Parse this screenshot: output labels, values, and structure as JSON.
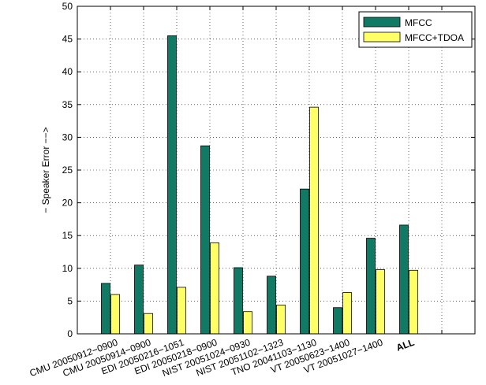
{
  "chart_data": {
    "type": "bar",
    "ylabel": "− Speaker Error −−>",
    "ylim": [
      0,
      50
    ],
    "yticks": [
      0,
      5,
      10,
      15,
      20,
      25,
      30,
      35,
      40,
      45,
      50
    ],
    "grid": true,
    "legend_position": "top-right",
    "categories": [
      "CMU 20050912−0900",
      "CMU 20050914−0900",
      "EDI 20050216−1051",
      "EDI 20050218−0900",
      "NIST 20051024−0930",
      "NIST 20051102−1323",
      "TNO 20041103−1130",
      "VT 20050623−1400",
      "VT 20051027−1400",
      "ALL"
    ],
    "series": [
      {
        "name": "MFCC",
        "color": "#117a65",
        "values": [
          7.7,
          10.5,
          45.5,
          28.7,
          10.1,
          8.8,
          22.1,
          4.0,
          14.6,
          16.6
        ]
      },
      {
        "name": "MFCC+TDOA",
        "color": "#ffff66",
        "values": [
          6.0,
          3.1,
          7.1,
          13.9,
          3.4,
          4.4,
          34.6,
          6.3,
          9.8,
          9.7
        ]
      }
    ]
  }
}
